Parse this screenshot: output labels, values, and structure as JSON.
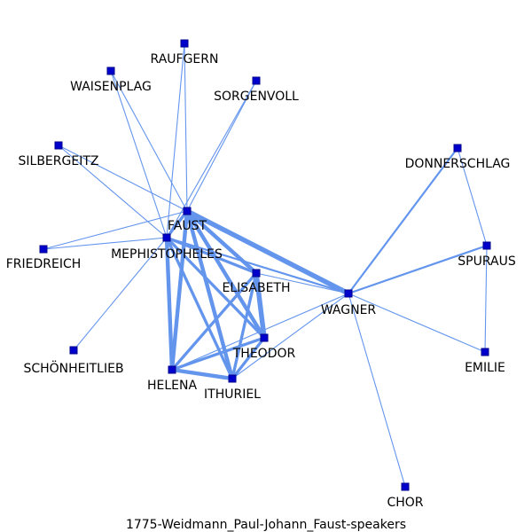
{
  "title": "1775-Weidmann_Paul-Johann_Faust-speakers",
  "colors": {
    "edge": "#6495ed",
    "node_fill": "#0000cd",
    "node_stroke": "#00008b",
    "text": "#000000"
  },
  "nodes": [
    {
      "id": "RAUFGERN",
      "label": "RAUFGERN"
    },
    {
      "id": "WAISENPLAG",
      "label": "WAISENPLAG"
    },
    {
      "id": "SORGENVOLL",
      "label": "SORGENVOLL"
    },
    {
      "id": "SILBERGEITZ",
      "label": "SILBERGEITZ"
    },
    {
      "id": "DONNERSCHLAG",
      "label": "DONNERSCHLAG"
    },
    {
      "id": "FAUST",
      "label": "FAUST"
    },
    {
      "id": "MEPHISTOPHELES",
      "label": "MEPHISTOPHELES"
    },
    {
      "id": "FRIEDREICH",
      "label": "FRIEDREICH"
    },
    {
      "id": "SPURAUS",
      "label": "SPURAUS"
    },
    {
      "id": "ELISABETH",
      "label": "ELISABETH"
    },
    {
      "id": "WAGNER",
      "label": "WAGNER"
    },
    {
      "id": "THEODOR",
      "label": "THEODOR"
    },
    {
      "id": "SCHÖNHEITLIEB",
      "label": "SCHÖNHEITLIEB"
    },
    {
      "id": "EMILIE",
      "label": "EMILIE"
    },
    {
      "id": "HELENA",
      "label": "HELENA"
    },
    {
      "id": "ITHURIEL",
      "label": "ITHURIEL"
    },
    {
      "id": "CHOR",
      "label": "CHOR"
    }
  ],
  "edges": [
    {
      "source": "FAUST",
      "target": "RAUFGERN",
      "weight": 1
    },
    {
      "source": "FAUST",
      "target": "WAISENPLAG",
      "weight": 1
    },
    {
      "source": "FAUST",
      "target": "SORGENVOLL",
      "weight": 1
    },
    {
      "source": "FAUST",
      "target": "SILBERGEITZ",
      "weight": 1
    },
    {
      "source": "FAUST",
      "target": "FRIEDREICH",
      "weight": 1
    },
    {
      "source": "FAUST",
      "target": "MEPHISTOPHELES",
      "weight": 3
    },
    {
      "source": "FAUST",
      "target": "ELISABETH",
      "weight": 4
    },
    {
      "source": "FAUST",
      "target": "WAGNER",
      "weight": 5
    },
    {
      "source": "FAUST",
      "target": "THEODOR",
      "weight": 4
    },
    {
      "source": "FAUST",
      "target": "HELENA",
      "weight": 4
    },
    {
      "source": "FAUST",
      "target": "ITHURIEL",
      "weight": 4
    },
    {
      "source": "MEPHISTOPHELES",
      "target": "RAUFGERN",
      "weight": 1
    },
    {
      "source": "MEPHISTOPHELES",
      "target": "WAISENPLAG",
      "weight": 1
    },
    {
      "source": "MEPHISTOPHELES",
      "target": "SORGENVOLL",
      "weight": 1
    },
    {
      "source": "MEPHISTOPHELES",
      "target": "SILBERGEITZ",
      "weight": 1
    },
    {
      "source": "MEPHISTOPHELES",
      "target": "FRIEDREICH",
      "weight": 1
    },
    {
      "source": "MEPHISTOPHELES",
      "target": "SCHÖNHEITLIEB",
      "weight": 1
    },
    {
      "source": "MEPHISTOPHELES",
      "target": "ELISABETH",
      "weight": 3
    },
    {
      "source": "MEPHISTOPHELES",
      "target": "WAGNER",
      "weight": 2
    },
    {
      "source": "MEPHISTOPHELES",
      "target": "THEODOR",
      "weight": 3
    },
    {
      "source": "MEPHISTOPHELES",
      "target": "HELENA",
      "weight": 4
    },
    {
      "source": "MEPHISTOPHELES",
      "target": "ITHURIEL",
      "weight": 3
    },
    {
      "source": "ELISABETH",
      "target": "THEODOR",
      "weight": 5
    },
    {
      "source": "ELISABETH",
      "target": "HELENA",
      "weight": 3
    },
    {
      "source": "ELISABETH",
      "target": "ITHURIEL",
      "weight": 3
    },
    {
      "source": "ELISABETH",
      "target": "WAGNER",
      "weight": 1
    },
    {
      "source": "THEODOR",
      "target": "HELENA",
      "weight": 3
    },
    {
      "source": "THEODOR",
      "target": "ITHURIEL",
      "weight": 3
    },
    {
      "source": "HELENA",
      "target": "ITHURIEL",
      "weight": 4
    },
    {
      "source": "WAGNER",
      "target": "DONNERSCHLAG",
      "weight": 2
    },
    {
      "source": "WAGNER",
      "target": "SPURAUS",
      "weight": 2
    },
    {
      "source": "WAGNER",
      "target": "EMILIE",
      "weight": 1
    },
    {
      "source": "WAGNER",
      "target": "CHOR",
      "weight": 1
    },
    {
      "source": "WAGNER",
      "target": "HELENA",
      "weight": 1
    },
    {
      "source": "WAGNER",
      "target": "ITHURIEL",
      "weight": 1
    },
    {
      "source": "DONNERSCHLAG",
      "target": "SPURAUS",
      "weight": 1
    },
    {
      "source": "SPURAUS",
      "target": "EMILIE",
      "weight": 1
    }
  ]
}
